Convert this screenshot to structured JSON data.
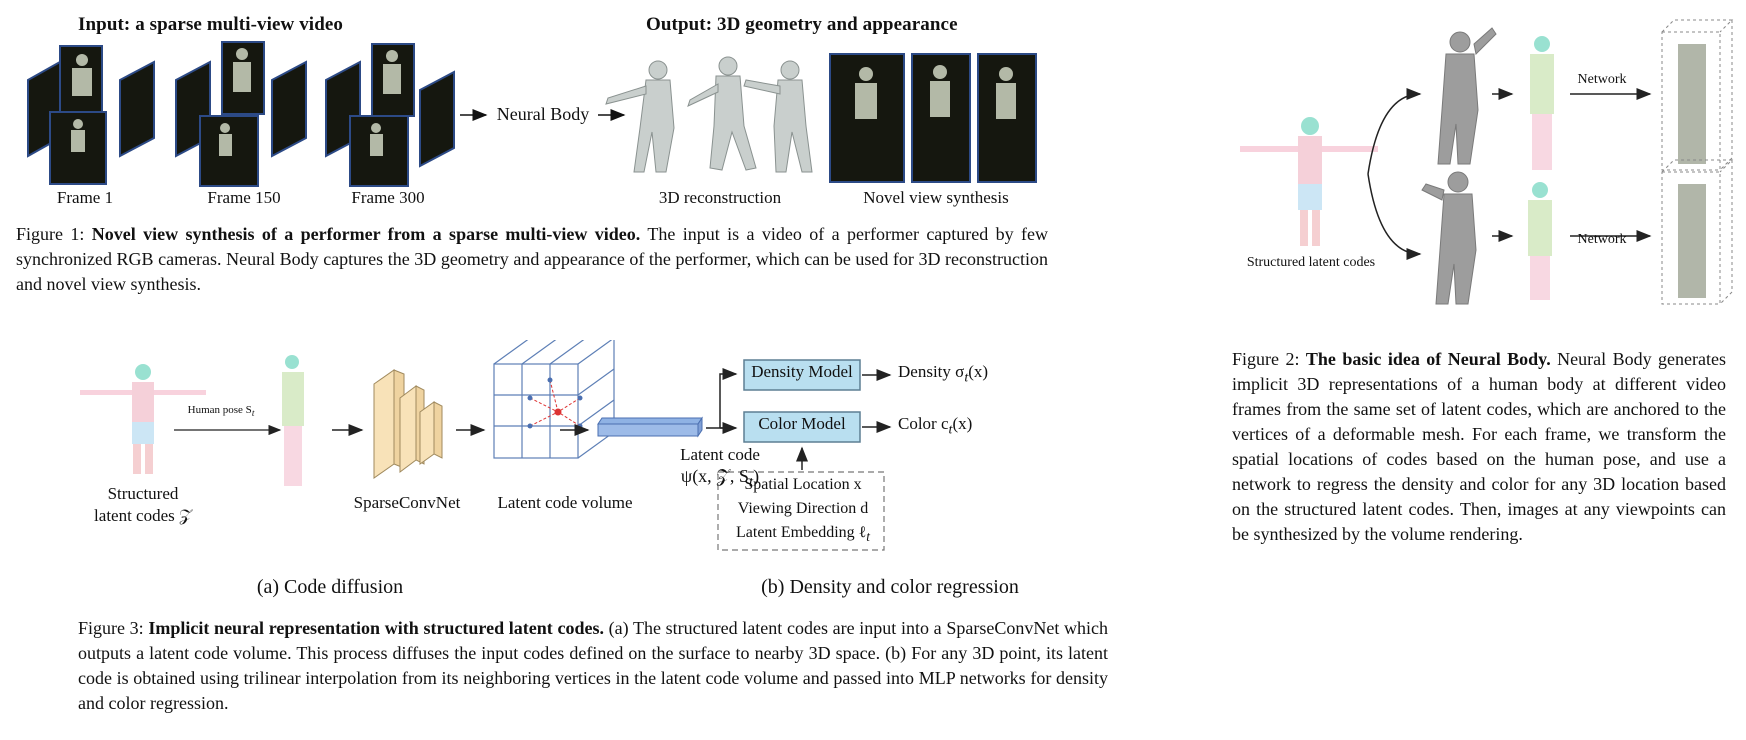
{
  "figure1": {
    "input_title": "Input: a sparse multi-view video",
    "output_title": "Output: 3D geometry and appearance",
    "arrow_label": "Neural Body",
    "frame_labels": [
      "Frame 1",
      "Frame 150",
      "Frame 300"
    ],
    "recon_label": "3D reconstruction",
    "nvs_label": "Novel view synthesis",
    "caption_prefix": "Figure 1:",
    "caption_bold": "Novel view synthesis of a performer from a sparse multi-view video.",
    "caption_text": "The input is a video of a performer captured by few synchronized RGB cameras. Neural Body captures the 3D geometry and appearance of the performer, which can be used for 3D reconstruction and novel view synthesis."
  },
  "figure2": {
    "structured_label": "Structured latent codes",
    "network_label_top": "Network",
    "network_label_bottom": "Network",
    "caption_prefix": "Figure 2:",
    "caption_bold": "The basic idea of Neural Body.",
    "caption_text": "Neural Body generates implicit 3D representations of a human body at different video frames from the same set of latent codes, which are anchored to the vertices of a deformable mesh. For each frame, we transform the spatial locations of codes based on the human pose, and use a network to regress the density and color for any 3D location based on the structured latent codes. Then, images at any viewpoints can be synthesized by the volume rendering."
  },
  "figure3": {
    "human_pose_label": "Human pose S",
    "human_pose_sub": "t",
    "structured_label_1": "Structured",
    "structured_label_2": "latent codes 𝒵",
    "sparseconvnet_label": "SparseConvNet",
    "volume_label": "Latent code volume",
    "latent_code_label": "Latent code",
    "latent_code_formula": "ψ(x, 𝒵, S",
    "latent_code_formula_sub": "t",
    "latent_code_formula_end": ")",
    "density_model": "Density Model",
    "color_model": "Color Model",
    "density_out": "Density σ",
    "density_out_sub": "t",
    "density_out_end": "(x)",
    "color_out": "Color c",
    "color_out_sub": "t",
    "color_out_end": "(x)",
    "inputs": [
      "Spatial Location x",
      "Viewing Direction d",
      "Latent Embedding ℓ"
    ],
    "latent_embedding_sub": "t",
    "sub_a": "(a) Code diffusion",
    "sub_b": "(b) Density and color regression",
    "caption_prefix": "Figure 3:",
    "caption_bold": "Implicit neural representation with structured latent codes.",
    "caption_text": "(a) The structured latent codes are input into a SparseConvNet which outputs a latent code volume. This process diffuses the input codes defined on the surface to nearby 3D space. (b) For any 3D point, its latent code is obtained using trilinear interpolation from its neighboring vertices in the latent code volume and passed into MLP networks for density and color regression."
  }
}
